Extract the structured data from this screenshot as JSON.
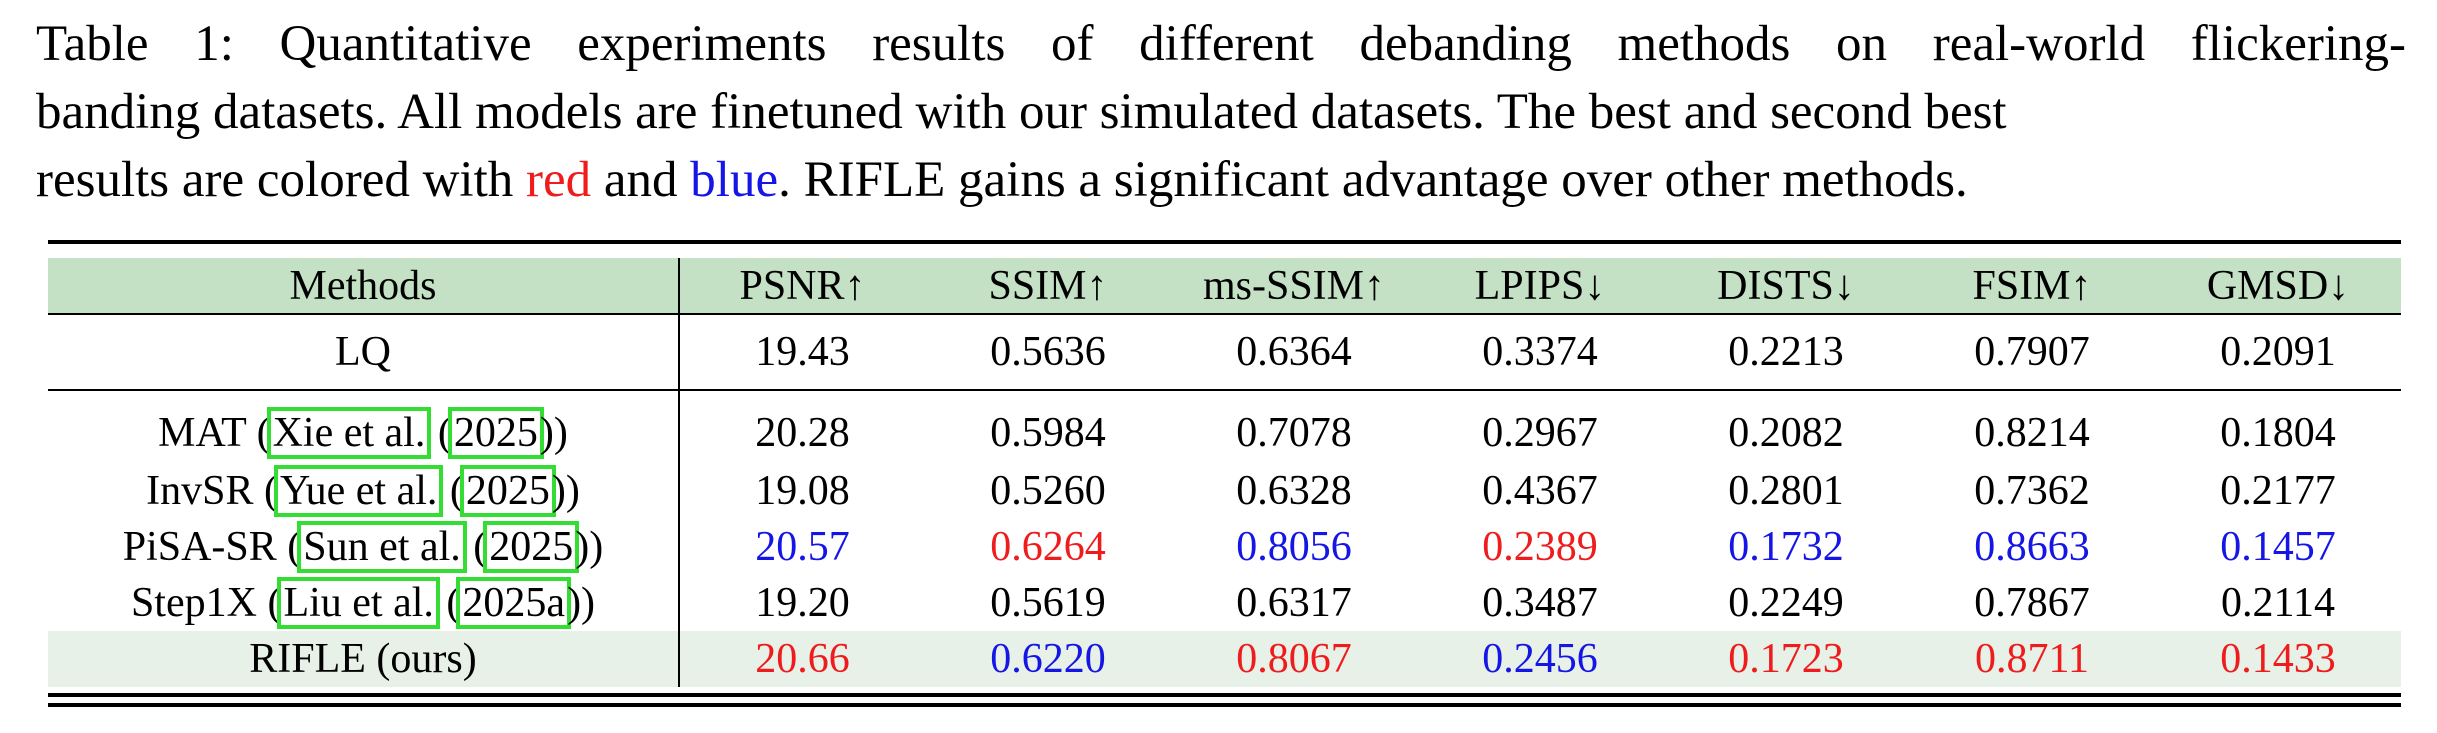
{
  "caption": {
    "line1": "Table 1: Quantitative experiments results of different debanding methods on real-world flickering-",
    "line2": "banding datasets. All models are finetuned with our simulated datasets. The best and second best",
    "line3_prefix": "results are colored with ",
    "red_word": "red",
    "and_word": " and ",
    "blue_word": "blue",
    "line3_suffix": ". RIFLE gains a significant advantage over other methods."
  },
  "colors": {
    "best": "#ee1c1c",
    "second": "#1515e6",
    "header_bg": "#c4e1c6",
    "ours_bg": "#e7f1e8",
    "citation_box": "#33dd33"
  },
  "table": {
    "headers": [
      "Methods",
      "PSNR↑",
      "SSIM↑",
      "ms-SSIM↑",
      "LPIPS↓",
      "DISTS↓",
      "FSIM↑",
      "GMSD↓"
    ],
    "lq": {
      "method": "LQ",
      "values": [
        "19.43",
        "0.5636",
        "0.6364",
        "0.3374",
        "0.2213",
        "0.7907",
        "0.2091"
      ]
    },
    "rows": [
      {
        "method_name": "MAT",
        "author": "Xie et al.",
        "year": "2025",
        "values": [
          "20.28",
          "0.5984",
          "0.7078",
          "0.2967",
          "0.2082",
          "0.8214",
          "0.1804"
        ],
        "colors": [
          "",
          "",
          "",
          "",
          "",
          "",
          ""
        ]
      },
      {
        "method_name": "InvSR",
        "author": "Yue et al.",
        "year": "2025",
        "values": [
          "19.08",
          "0.5260",
          "0.6328",
          "0.4367",
          "0.2801",
          "0.7362",
          "0.2177"
        ],
        "colors": [
          "",
          "",
          "",
          "",
          "",
          "",
          ""
        ]
      },
      {
        "method_name": "PiSA-SR",
        "author": "Sun et al.",
        "year": "2025",
        "values": [
          "20.57",
          "0.6264",
          "0.8056",
          "0.2389",
          "0.1732",
          "0.8663",
          "0.1457"
        ],
        "colors": [
          "blue",
          "red",
          "blue",
          "red",
          "blue",
          "blue",
          "blue"
        ]
      },
      {
        "method_name": "Step1X",
        "author": "Liu et al.",
        "year": "2025a",
        "values": [
          "19.20",
          "0.5619",
          "0.6317",
          "0.3487",
          "0.2249",
          "0.7867",
          "0.2114"
        ],
        "colors": [
          "",
          "",
          "",
          "",
          "",
          "",
          ""
        ]
      }
    ],
    "ours": {
      "method": "RIFLE (ours)",
      "values": [
        "20.66",
        "0.6220",
        "0.8067",
        "0.2456",
        "0.1723",
        "0.8711",
        "0.1433"
      ],
      "colors": [
        "red",
        "blue",
        "red",
        "blue",
        "red",
        "red",
        "red"
      ]
    }
  }
}
